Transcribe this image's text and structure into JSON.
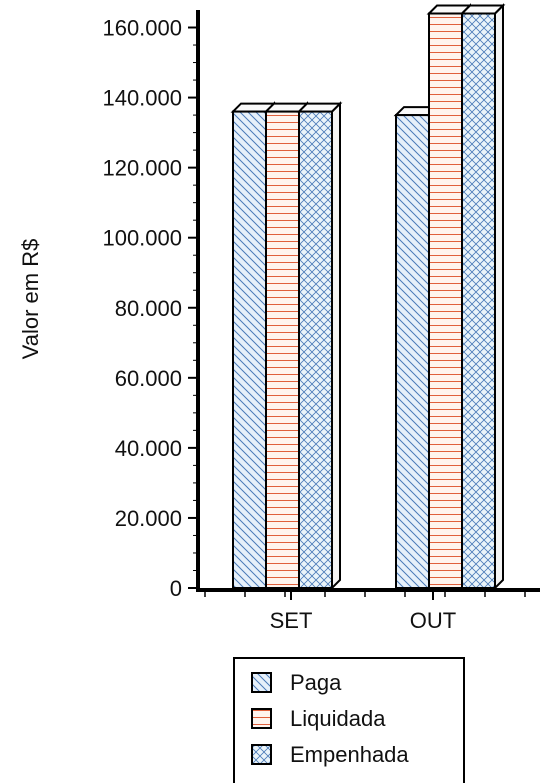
{
  "chart_data": {
    "type": "bar",
    "categories": [
      "SET",
      "OUT"
    ],
    "series": [
      {
        "name": "Paga",
        "values": [
          136000,
          135000
        ],
        "pattern": "diag-down",
        "pattern_color": "#4a7ab8",
        "fill_color": "#e6f0fa"
      },
      {
        "name": "Liquidada",
        "values": [
          136000,
          164000
        ],
        "pattern": "horizontal",
        "pattern_color": "#e0603c",
        "fill_color": "#fff4ee"
      },
      {
        "name": "Empenhada",
        "values": [
          136000,
          164000
        ],
        "pattern": "crosshatch",
        "pattern_color": "#4a7ab8",
        "fill_color": "#eaf4fa"
      }
    ],
    "ylabel": "Valor em R$",
    "xlabel": "",
    "ylim": [
      0,
      165000
    ],
    "yticks": [
      {
        "value": 0,
        "label": "0"
      },
      {
        "value": 20000,
        "label": "20.000"
      },
      {
        "value": 40000,
        "label": "40.000"
      },
      {
        "value": 60000,
        "label": "60.000"
      },
      {
        "value": 80000,
        "label": "80.000"
      },
      {
        "value": 100000,
        "label": "100.000"
      },
      {
        "value": 120000,
        "label": "120.000"
      },
      {
        "value": 140000,
        "label": "140.000"
      },
      {
        "value": 160000,
        "label": "160.000"
      }
    ],
    "grid": false,
    "legend_position": "bottom"
  }
}
